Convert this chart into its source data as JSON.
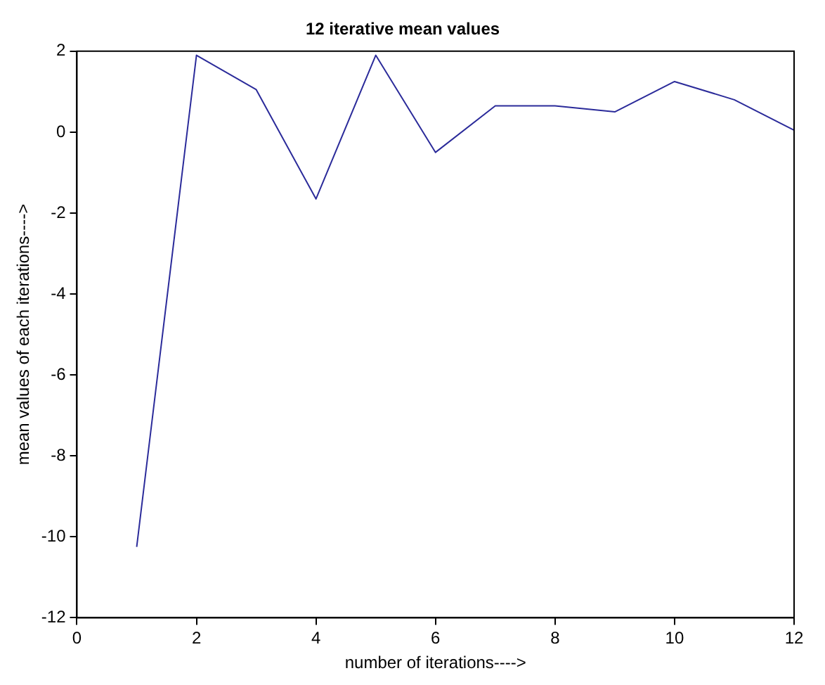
{
  "chart_data": {
    "type": "line",
    "title": "12 iterative mean values",
    "xlabel": "number of iterations---->",
    "ylabel": "mean values of each iterations---->",
    "x": [
      1,
      2,
      3,
      4,
      5,
      6,
      7,
      8,
      9,
      10,
      11,
      12
    ],
    "series": [
      {
        "color": "#2b2b9a",
        "values": [
          -10.25,
          1.9,
          1.05,
          -1.65,
          1.9,
          -0.5,
          0.65,
          0.65,
          0.5,
          1.25,
          0.8,
          0.05
        ]
      }
    ],
    "xlim": [
      0,
      12
    ],
    "xticks": [
      0,
      2,
      4,
      6,
      8,
      10,
      12
    ],
    "ylim": [
      -12,
      2
    ],
    "yticks": [
      -12,
      -10,
      -8,
      -6,
      -4,
      -2,
      0,
      2
    ],
    "grid": false,
    "legend": false,
    "marker": "none",
    "line_style": "solid"
  }
}
